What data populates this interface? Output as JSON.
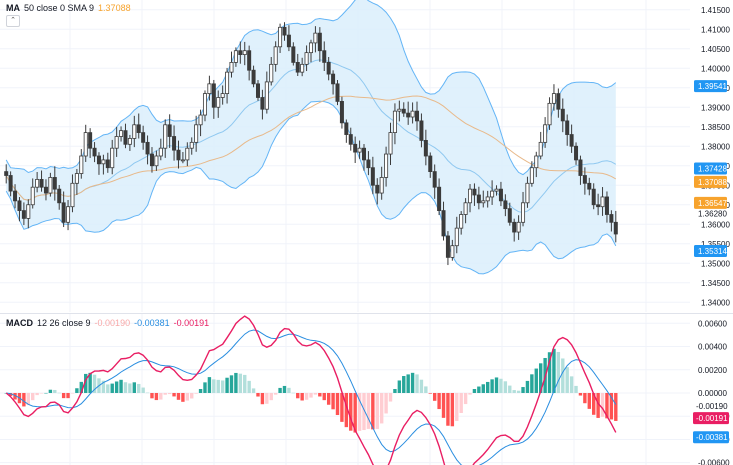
{
  "legend_top": {
    "name": "MA",
    "params": "50 close 0 SMA 9",
    "value": "1.37088",
    "color": "#f7a32d"
  },
  "legend_bottom": {
    "name": "MACD",
    "params": "12 26 close 9",
    "v1": "-0.00190",
    "v1_color": "#f7a9a9",
    "v2": "-0.00381",
    "v2_color": "#2a8ee0",
    "v3": "-0.00191",
    "v3_color": "#e91e63"
  },
  "collapse_icon": "chevron-up-icon",
  "colors": {
    "up": "#26a69a",
    "candle_up": "#555555",
    "band_fill": "#dbeefb",
    "band_line": "#64b5f6",
    "basis": "#8fc8f0",
    "ma": "#e8b98a",
    "hist_pos_strong": "#26a69a",
    "hist_pos_weak": "#b2dfdb",
    "hist_neg_strong": "#ff5252",
    "hist_neg_weak": "#ffcdd2",
    "macd_line": "#e91e63",
    "signal_line": "#2a8ee0"
  },
  "chart_data": [
    {
      "type": "candlestick",
      "title": "",
      "y_ticks": [
        "1.41500",
        "1.41000",
        "1.40500",
        "1.40000",
        "1.39500",
        "1.39000",
        "1.38500",
        "1.38000",
        "1.37500",
        "1.37000",
        "1.36500",
        "1.36000",
        "1.35500",
        "1.35000",
        "1.34500",
        "1.34000"
      ],
      "ylim": [
        1.3375,
        1.4175
      ],
      "price_labels": [
        {
          "text": "1.39541",
          "value": 1.39541,
          "bg": "#2196f3"
        },
        {
          "text": "1.37428",
          "value": 1.37428,
          "bg": "#2196f3"
        },
        {
          "text": "1.37088",
          "value": 1.37088,
          "bg": "#f7a32d"
        },
        {
          "text": "1.36547",
          "value": 1.36547,
          "bg": "#f7a32d"
        },
        {
          "text": "1.36280",
          "value": 1.3628,
          "bg": "none"
        },
        {
          "text": "1.35314",
          "value": 1.35314,
          "bg": "#2196f3"
        }
      ],
      "close": [
        1.3725,
        1.3685,
        1.366,
        1.3635,
        1.3615,
        1.365,
        1.3695,
        1.3715,
        1.3695,
        1.368,
        1.372,
        1.369,
        1.3655,
        1.3605,
        1.3645,
        1.3705,
        1.373,
        1.3775,
        1.3835,
        1.3795,
        1.3775,
        1.3755,
        1.3765,
        1.3745,
        1.3795,
        1.3825,
        1.384,
        1.3805,
        1.382,
        1.3855,
        1.3835,
        1.381,
        1.378,
        1.375,
        1.3775,
        1.3795,
        1.3855,
        1.3825,
        1.379,
        1.3765,
        1.3765,
        1.3795,
        1.381,
        1.3855,
        1.388,
        1.3935,
        1.396,
        1.39,
        1.3925,
        1.3935,
        1.399,
        1.4015,
        1.4045,
        1.4035,
        1.4045,
        1.3995,
        1.396,
        1.3925,
        1.3895,
        1.3965,
        1.401,
        1.4055,
        1.4105,
        1.4085,
        1.4055,
        1.4015,
        1.399,
        1.401,
        1.404,
        1.4065,
        1.409,
        1.4045,
        1.4015,
        1.3985,
        1.396,
        1.3915,
        1.386,
        1.383,
        1.3805,
        1.3785,
        1.3795,
        1.3765,
        1.3745,
        1.37,
        1.368,
        1.372,
        1.378,
        1.3835,
        1.389,
        1.3895,
        1.3885,
        1.3875,
        1.389,
        1.3865,
        1.3815,
        1.3775,
        1.3735,
        1.3695,
        1.3635,
        1.357,
        1.3515,
        1.3545,
        1.359,
        1.3625,
        1.3655,
        1.369,
        1.3675,
        1.3655,
        1.366,
        1.367,
        1.3685,
        1.369,
        1.366,
        1.364,
        1.3605,
        1.358,
        1.3605,
        1.3655,
        1.3705,
        1.3745,
        1.3775,
        1.381,
        1.3855,
        1.391,
        1.3935,
        1.3895,
        1.3865,
        1.383,
        1.38,
        1.3765,
        1.3725,
        1.3705,
        1.369,
        1.365,
        1.3645,
        1.367,
        1.3625,
        1.3605,
        1.3575
      ],
      "bbands": {
        "length": 20
      },
      "ma_length": 50
    },
    {
      "type": "macd",
      "params": [
        12,
        26,
        9
      ],
      "y_ticks": [
        "0.00600",
        "0.00400",
        "0.00200",
        "0.00000",
        "-0.00200",
        "-0.00400",
        "-0.00600"
      ],
      "ylim": [
        -0.0062,
        0.0068
      ],
      "value_labels": [
        {
          "text": "-0.00190",
          "value": -0.0019,
          "bg": "none"
        },
        {
          "text": "-0.00191",
          "value": -0.00191,
          "bg": "#e91e63"
        },
        {
          "text": "-0.00381",
          "value": -0.00381,
          "bg": "#2196f3"
        }
      ]
    }
  ]
}
